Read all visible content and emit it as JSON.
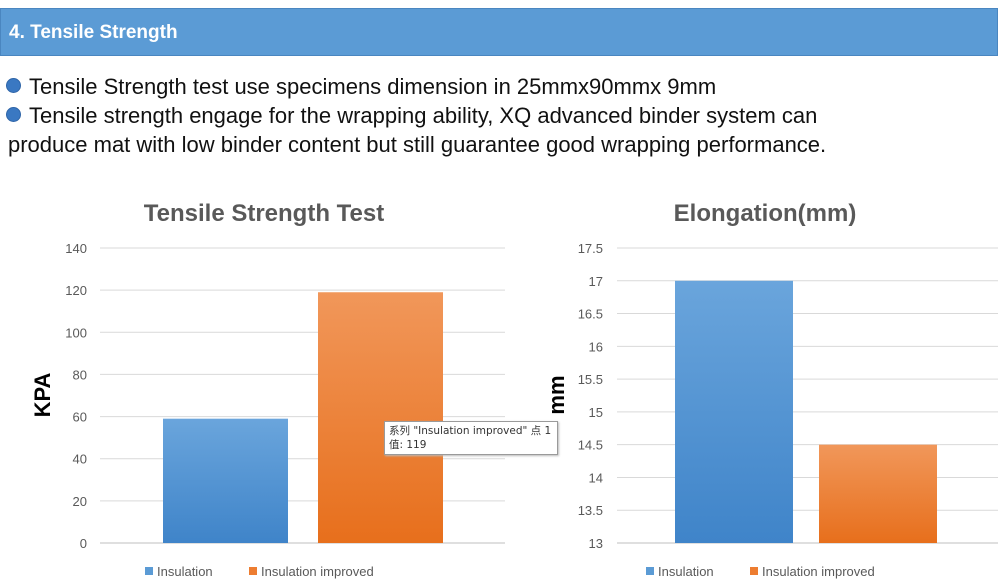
{
  "header": {
    "title": "4. Tensile Strength"
  },
  "bullets": [
    "Tensile Strength test use specimens dimension in 25mmx90mmx 9mm",
    "Tensile strength engage for the wrapping ability, XQ advanced binder system can"
  ],
  "bullet_continuation": "produce mat with low binder content but still guarantee good wrapping performance.",
  "colors": {
    "header_bg": "#5b9bd5",
    "series1": "#5b9bd5",
    "series2": "#ed7d31"
  },
  "tooltip": {
    "line1": "系列 \"Insulation improved\" 点 1",
    "line2": "值: 119"
  },
  "chart_data": [
    {
      "type": "bar",
      "title": "Tensile Strength Test",
      "ylabel": "KPA",
      "xlabel": "",
      "ylim": [
        0,
        140
      ],
      "yticks": [
        0,
        20,
        40,
        60,
        80,
        100,
        120,
        140
      ],
      "ytick_labels": [
        "0",
        "20",
        "40",
        "60",
        "80",
        "100",
        "120",
        "140"
      ],
      "grid": true,
      "legend": "bottom",
      "series": [
        {
          "name": "Insulation",
          "values": [
            59
          ]
        },
        {
          "name": "Insulation improved",
          "values": [
            119
          ]
        }
      ]
    },
    {
      "type": "bar",
      "title": "Elongation(mm)",
      "ylabel": "mm",
      "xlabel": "",
      "ylim": [
        13,
        17.5
      ],
      "yticks": [
        13,
        13.5,
        14,
        14.5,
        15,
        15.5,
        16,
        16.5,
        17,
        17.5
      ],
      "ytick_labels": [
        "13",
        "13.5",
        "14",
        "14.5",
        "15",
        "15.5",
        "16",
        "16.5",
        "17",
        "17.5"
      ],
      "grid": true,
      "legend": "bottom",
      "series": [
        {
          "name": "Insulation",
          "values": [
            17
          ]
        },
        {
          "name": "Insulation improved",
          "values": [
            14.5
          ]
        }
      ]
    }
  ]
}
